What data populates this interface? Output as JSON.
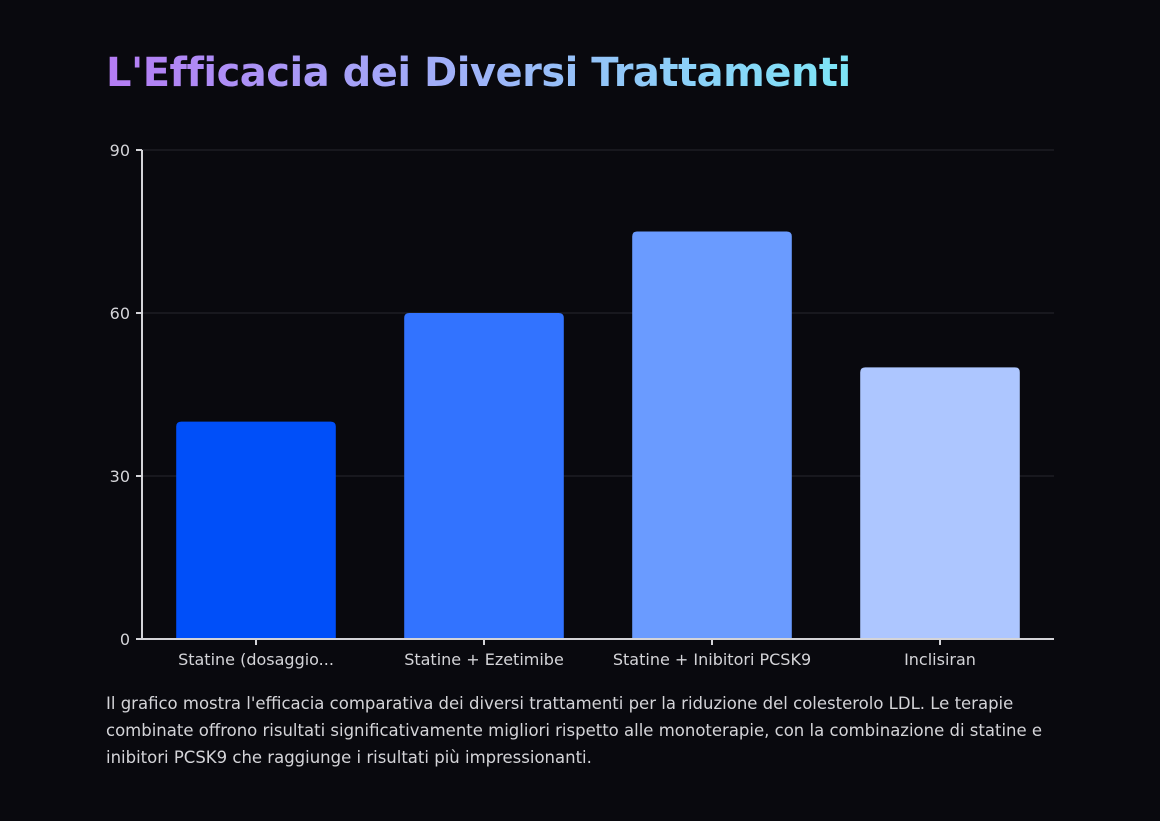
{
  "title": "L'Efficacia dei Diversi Trattamenti",
  "description": "Il grafico mostra l'efficacia comparativa dei diversi trattamenti per la riduzione del colesterolo LDL. Le terapie combinate offrono risultati significativamente migliori rispetto alle monoterapie, con la combinazione di statine e inibitori PCSK9 che raggiunge i risultati più impressionanti.",
  "chart_data": {
    "type": "bar",
    "categories": [
      "Statine (dosaggio...",
      "Statine + Ezetimibe",
      "Statine + Inibitori PCSK9",
      "Inclisiran"
    ],
    "values": [
      40,
      60,
      75,
      50
    ],
    "colors": [
      "#004ff9",
      "#3273ff",
      "#6a9bff",
      "#adc6ff"
    ],
    "ylim": [
      0,
      90
    ],
    "yticks": [
      0,
      30,
      60,
      90
    ],
    "grid": true,
    "legend": "none"
  }
}
